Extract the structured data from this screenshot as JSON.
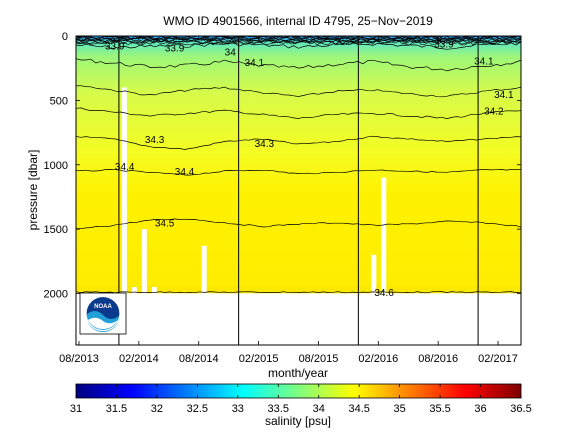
{
  "chart_data": {
    "type": "heatmap",
    "title": "WMO ID 4901566, internal ID 4795, 25−Nov−2019",
    "xlabel": "month/year",
    "ylabel": "pressure [dbar]",
    "x_ticks": [
      "08/2013",
      "02/2014",
      "08/2014",
      "02/2015",
      "08/2015",
      "02/2016",
      "08/2016",
      "02/2017"
    ],
    "x_range": [
      "2013-08",
      "2017-04"
    ],
    "y_ticks": [
      0,
      500,
      1000,
      1500,
      2000
    ],
    "ylim": [
      2400,
      0
    ],
    "y_reversed": true,
    "grid": false,
    "profile_max_pressure": 2000,
    "vertical_lines_at": [
      "2013-12",
      "2014-12",
      "2015-12",
      "2016-12"
    ],
    "data_gaps": [
      {
        "from": "2013-12",
        "to": "2014-01",
        "from_pressure": 400
      },
      {
        "from": "2014-01",
        "to": "2014-02",
        "from_pressure": 1950
      },
      {
        "from": "2014-02",
        "to": "2014-03",
        "from_pressure": 1500
      },
      {
        "from": "2014-03",
        "to": "2014-04",
        "from_pressure": 1950
      },
      {
        "from": "2014-08",
        "to": "2014-09",
        "from_pressure": 1630
      },
      {
        "from": "2016-01",
        "to": "2016-02",
        "from_pressure": 1700
      },
      {
        "from": "2016-02",
        "to": "2016-03",
        "from_pressure": 1100
      }
    ],
    "contours": [
      {
        "label": "33.9",
        "depths": [
          70,
          90,
          80,
          75,
          60,
          70,
          85,
          70,
          60,
          75,
          90,
          70,
          55
        ]
      },
      {
        "label": "34",
        "depths": [
          180,
          210,
          240,
          230,
          200,
          230,
          250,
          220,
          200,
          240,
          260,
          230,
          200
        ]
      },
      {
        "label": "34.1",
        "depths": [
          380,
          420,
          460,
          420,
          400,
          440,
          470,
          430,
          420,
          450,
          470,
          430,
          400
        ]
      },
      {
        "label": "34.2",
        "depths": [
          560,
          590,
          620,
          600,
          580,
          610,
          640,
          610,
          600,
          620,
          640,
          600,
          580
        ]
      },
      {
        "label": "34.3",
        "depths": [
          780,
          800,
          860,
          880,
          820,
          800,
          840,
          820,
          780,
          800,
          820,
          800,
          780
        ]
      },
      {
        "label": "34.4",
        "depths": [
          1050,
          1040,
          1060,
          1080,
          1050,
          1040,
          1070,
          1060,
          1040,
          1050,
          1060,
          1040,
          1040
        ]
      },
      {
        "label": "34.5",
        "depths": [
          1500,
          1470,
          1430,
          1420,
          1450,
          1480,
          1460,
          1450,
          1470,
          1460,
          1440,
          1450,
          1480
        ]
      },
      {
        "label": "34.6",
        "depths": [
          1990,
          1990,
          1990,
          1990,
          1990,
          1990,
          1990,
          1990,
          1990,
          1990,
          1990,
          1990,
          1990
        ]
      }
    ],
    "contour_labels_on_plot": [
      "33.9",
      "33.9",
      "33.9",
      "34",
      "34.1",
      "34.1",
      "34.1",
      "34.2",
      "34.3",
      "34.3",
      "34.4",
      "34.4",
      "34.5",
      "34.6"
    ],
    "colorbar": {
      "label": "salinity [psu]",
      "range": [
        31,
        36.5
      ],
      "ticks": [
        "31",
        "31.5",
        "32",
        "32.5",
        "33",
        "33.5",
        "34",
        "34.5",
        "35",
        "35.5",
        "36",
        "36.5"
      ],
      "colors": [
        "#00007f",
        "#0000ff",
        "#007fff",
        "#00ffff",
        "#7fff7f",
        "#ffff00",
        "#ff7f00",
        "#ff0000",
        "#7f0000"
      ]
    },
    "logo": {
      "text": "NOAA",
      "colors": [
        "#0a3a8c",
        "#21a0d8",
        "#ffffff"
      ]
    }
  }
}
